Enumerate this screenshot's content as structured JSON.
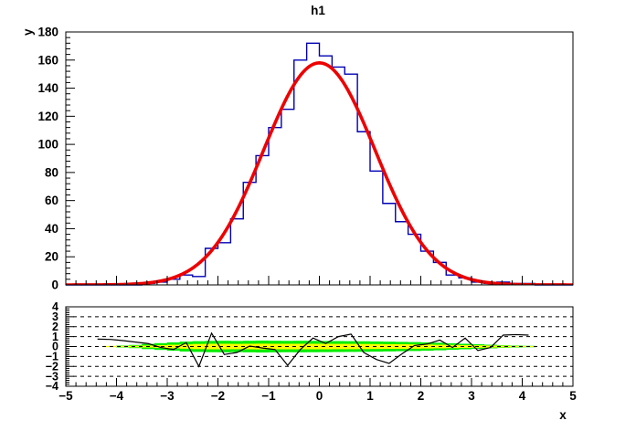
{
  "title": "h1",
  "colors": {
    "histogram": "#0000b4",
    "fit_curve": "#ee0000",
    "band_outer": "#00ee00",
    "band_inner": "#ffff00",
    "axis": "#000000",
    "background": "#ffffff"
  },
  "axes": {
    "x_title": "x",
    "y_title": "y",
    "x_tick_labels": [
      -5,
      -4,
      -3,
      -2,
      -1,
      0,
      1,
      2,
      3,
      4,
      5
    ],
    "top_y_tick_labels": [
      0,
      20,
      40,
      60,
      80,
      100,
      120,
      140,
      160,
      180
    ],
    "bottom_y_tick_labels": [
      -4,
      -3,
      -2,
      -1,
      0,
      1,
      2,
      3,
      4
    ]
  },
  "chart_data": [
    {
      "type": "bar",
      "role": "histogram-with-gaussian-fit",
      "title": "h1",
      "xlabel": "",
      "ylabel": "y",
      "xlim": [
        -5,
        5
      ],
      "ylim": [
        0,
        180
      ],
      "bin_width": 0.25,
      "bin_centers": [
        -4.875,
        -4.625,
        -4.375,
        -4.125,
        -3.875,
        -3.625,
        -3.375,
        -3.125,
        -2.875,
        -2.625,
        -2.375,
        -2.125,
        -1.875,
        -1.625,
        -1.375,
        -1.125,
        -0.875,
        -0.625,
        -0.375,
        -0.125,
        0.125,
        0.375,
        0.625,
        0.875,
        1.125,
        1.375,
        1.625,
        1.875,
        2.125,
        2.375,
        2.625,
        2.875,
        3.125,
        3.375,
        3.625,
        3.875,
        4.125,
        4.375,
        4.625,
        4.875
      ],
      "values": [
        0,
        0,
        0,
        0,
        0,
        0,
        1,
        2,
        4,
        7,
        6,
        26,
        30,
        47,
        73,
        92,
        112,
        125,
        160,
        172,
        163,
        155,
        150,
        109,
        81,
        58,
        45,
        36,
        24,
        16,
        7,
        5,
        2,
        1,
        2,
        1,
        1,
        0,
        0,
        0
      ],
      "fit": {
        "shape": "gaussian",
        "amplitude": 158,
        "mean": 0,
        "sigma": 1.1
      },
      "grid": false,
      "legend": "none"
    },
    {
      "type": "line",
      "role": "pull-residual-panel",
      "xlabel": "x",
      "ylabel": "",
      "xlim": [
        -5,
        5
      ],
      "ylim": [
        -4,
        4
      ],
      "gridlines_y": [
        -3,
        -2,
        -1,
        0,
        1,
        2,
        3
      ],
      "x": [
        -4.375,
        -4.125,
        -3.875,
        -3.625,
        -3.375,
        -3.125,
        -2.875,
        -2.625,
        -2.375,
        -2.125,
        -1.875,
        -1.625,
        -1.375,
        -1.125,
        -0.875,
        -0.625,
        -0.375,
        -0.125,
        0.125,
        0.375,
        0.625,
        0.875,
        1.125,
        1.375,
        1.625,
        1.875,
        2.125,
        2.375,
        2.625,
        2.875,
        3.125,
        3.375,
        3.625,
        3.875,
        4.125
      ],
      "pull": [
        0.75,
        0.72,
        0.6,
        0.45,
        0.3,
        -0.1,
        -0.3,
        0.4,
        -2.0,
        1.35,
        -0.8,
        -0.6,
        0.05,
        -0.15,
        -0.3,
        -1.9,
        -0.3,
        0.85,
        0.3,
        1.0,
        1.25,
        -0.6,
        -1.3,
        -1.7,
        -0.75,
        0.1,
        0.25,
        0.65,
        -0.1,
        0.85,
        -0.4,
        -0.1,
        1.15,
        1.2,
        1.15
      ],
      "band_x": [
        -4.125,
        -3.875,
        -3.625,
        -3.375,
        -3.125,
        -2.875,
        -2.625,
        -2.375,
        -2.125,
        -1.875,
        -1.625,
        -1.375,
        -1.125,
        -0.875,
        -0.625,
        -0.375,
        -0.125,
        0.125,
        0.375,
        0.625,
        0.875,
        1.125,
        1.375,
        1.625,
        1.875,
        2.125,
        2.375,
        2.625,
        2.875,
        3.125,
        3.375,
        3.625,
        3.875,
        4.125
      ],
      "band_outer_halfwidth": [
        0.0,
        0.1,
        0.16,
        0.26,
        0.34,
        0.42,
        0.5,
        0.54,
        0.57,
        0.58,
        0.56,
        0.58,
        0.6,
        0.58,
        0.57,
        0.58,
        0.57,
        0.56,
        0.55,
        0.54,
        0.53,
        0.51,
        0.49,
        0.47,
        0.45,
        0.42,
        0.38,
        0.33,
        0.28,
        0.23,
        0.18,
        0.13,
        0.1,
        0.07
      ],
      "band_inner_halfwidth": [
        0.06,
        0.06,
        0.08,
        0.1,
        0.14,
        0.18,
        0.22,
        0.26,
        0.28,
        0.28,
        0.27,
        0.28,
        0.29,
        0.28,
        0.28,
        0.28,
        0.28,
        0.28,
        0.27,
        0.27,
        0.26,
        0.25,
        0.24,
        0.23,
        0.22,
        0.2,
        0.18,
        0.16,
        0.14,
        0.12,
        0.1,
        0.08,
        0.06,
        0.05
      ]
    }
  ]
}
